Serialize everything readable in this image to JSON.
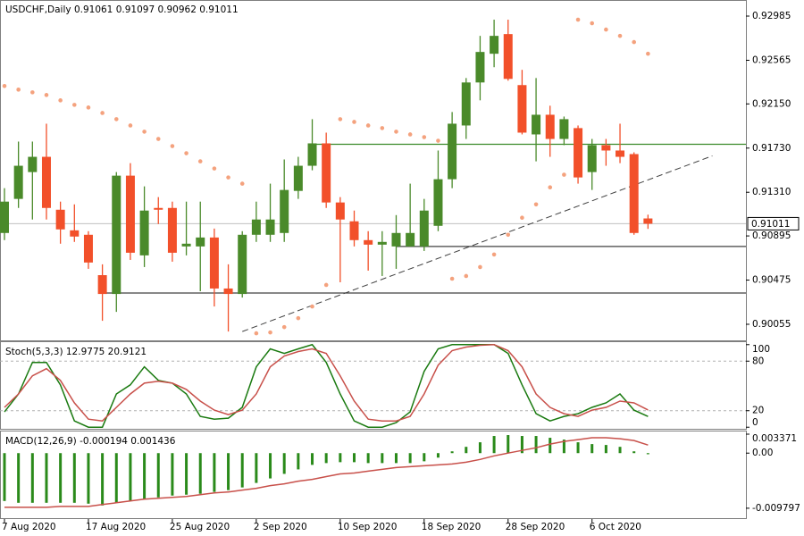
{
  "chart_data": [
    {
      "type": "candlestick",
      "title": "USDCHF,Daily  0.91061 0.91097 0.90962 0.91011",
      "categories": [
        "7 Aug 2020",
        null,
        null,
        null,
        null,
        null,
        "17 Aug 2020",
        null,
        null,
        null,
        null,
        null,
        "25 Aug 2020",
        null,
        null,
        null,
        null,
        null,
        "2 Sep 2020",
        null,
        null,
        null,
        null,
        null,
        "10 Sep 2020",
        null,
        null,
        null,
        null,
        null,
        "18 Sep 2020",
        null,
        null,
        null,
        null,
        null,
        "28 Sep 2020",
        null,
        null,
        null,
        null,
        null,
        "6 Oct 2020",
        null,
        null,
        null,
        null
      ],
      "open": [
        0.90923,
        0.91247,
        0.91502,
        0.91647,
        0.91144,
        0.90948,
        0.90906,
        0.90522,
        0.90343,
        0.91468,
        0.9071,
        0.91161,
        0.91161,
        0.90795,
        0.90795,
        0.9088,
        0.90395,
        0.90343,
        0.90906,
        0.90906,
        0.90923,
        0.91323,
        0.91562,
        0.91775,
        0.91213,
        0.91034,
        0.90855,
        0.90812,
        0.90795,
        0.90795,
        0.90795,
        0.90991,
        0.91434,
        0.91945,
        0.92354,
        0.92627,
        0.92814,
        0.92329,
        0.9186,
        0.92047,
        0.91817,
        0.9192,
        0.91502,
        0.91758,
        0.91707,
        0.91673,
        0.91061
      ],
      "high": [
        0.91349,
        0.91792,
        0.91792,
        0.91962,
        0.91221,
        0.91195,
        0.9094,
        0.90625,
        0.91502,
        0.91587,
        0.91366,
        0.91264,
        0.91221,
        0.91221,
        0.91221,
        0.90965,
        0.90625,
        0.9094,
        0.91221,
        0.91392,
        0.91622,
        0.91647,
        0.92005,
        0.91877,
        0.91264,
        0.91136,
        0.9094,
        0.9094,
        0.91093,
        0.91392,
        0.91247,
        0.91707,
        0.92073,
        0.92396,
        0.92797,
        0.92951,
        0.92951,
        0.92474,
        0.92396,
        0.92133,
        0.9203,
        0.91945,
        0.91817,
        0.91817,
        0.91962,
        0.9169,
        0.91097
      ],
      "low": [
        0.90855,
        0.91161,
        0.91051,
        0.91051,
        0.90821,
        0.90838,
        0.90582,
        0.90088,
        0.90173,
        0.90667,
        0.90599,
        0.91008,
        0.9065,
        0.9071,
        0.90369,
        0.90224,
        0.89986,
        0.90309,
        0.90838,
        0.90838,
        0.90838,
        0.91247,
        0.91519,
        0.91161,
        0.90454,
        0.90795,
        0.90565,
        0.90514,
        0.90582,
        0.90795,
        0.90752,
        0.9094,
        0.91349,
        0.91817,
        0.92184,
        0.92499,
        0.92371,
        0.9186,
        0.91604,
        0.91647,
        0.91758,
        0.91392,
        0.91332,
        0.91562,
        0.91587,
        0.90906,
        0.90962
      ],
      "close": [
        0.91221,
        0.91562,
        0.91647,
        0.91161,
        0.90957,
        0.90889,
        0.90642,
        0.90343,
        0.91468,
        0.90735,
        0.91136,
        0.91144,
        0.90735,
        0.90821,
        0.9088,
        0.90395,
        0.90343,
        0.90906,
        0.91051,
        0.91051,
        0.91332,
        0.91562,
        0.91775,
        0.91213,
        0.91051,
        0.90855,
        0.90812,
        0.90838,
        0.90923,
        0.90923,
        0.91136,
        0.91434,
        0.91962,
        0.92354,
        0.92644,
        0.92797,
        0.92388,
        0.91877,
        0.92047,
        0.91817,
        0.92005,
        0.91451,
        0.91758,
        0.91707,
        0.91647,
        0.90923,
        0.91011
      ],
      "up_color": "#4a8a2a",
      "down_color": "#f2502a",
      "sar": {
        "color": "#f4a27e",
        "values": [
          0.9232,
          0.92286,
          0.9226,
          0.92235,
          0.92184,
          0.92141,
          0.92116,
          0.92064,
          0.92005,
          0.91945,
          0.91886,
          0.91817,
          0.91749,
          0.91681,
          0.91604,
          0.91536,
          0.91451,
          0.91392,
          0.89969,
          0.89977,
          0.90028,
          0.90113,
          0.90224,
          0.90429,
          0.92005,
          0.91979,
          0.91945,
          0.9192,
          0.91886,
          0.9186,
          0.91834,
          0.918,
          0.90488,
          0.90514,
          0.90599,
          0.90718,
          0.90906,
          0.91068,
          0.91195,
          0.91357,
          0.91477,
          0.92951,
          0.92917,
          0.92857,
          0.92797,
          0.92738,
          0.92627
        ]
      },
      "hlines": [
        {
          "value": 0.91766,
          "color": "#3a8a2a",
          "start": 22
        },
        {
          "value": 0.90795,
          "color": "#404040",
          "start": 28
        },
        {
          "value": 0.90352,
          "color": "#404040",
          "start": 7
        }
      ],
      "trendline": {
        "x": [
          17,
          50.6
        ],
        "y": [
          0.89986,
          0.91656
        ],
        "color": "#404040"
      },
      "last_price": 0.91011,
      "ylim": [
        0.89902,
        0.93138
      ],
      "yticks": [
        0.92985,
        0.92565,
        {
          "value": 0.9215,
          "label": "0.92150"
        },
        {
          "value": 0.9173,
          "label": "0.91730"
        },
        {
          "value": 0.9131,
          "label": "0.91310"
        },
        0.90895,
        0.90475,
        0.90055
      ]
    },
    {
      "type": "line",
      "title": "Stoch(5,3,3) 12.9775 20.9121",
      "ylim": [
        -3,
        103
      ],
      "yticks": [
        100,
        80,
        20,
        0
      ],
      "levels": [
        80,
        20
      ],
      "series": [
        {
          "color": "#1a7a10",
          "values": [
            18.5,
            40.3,
            78.5,
            78.5,
            51.3,
            7.6,
            0,
            0,
            40.3,
            51.3,
            73.1,
            56.7,
            53.4,
            40.3,
            13.1,
            9.8,
            10.9,
            24.0,
            73.1,
            94.9,
            89.4,
            94.9,
            100,
            78.5,
            40.3,
            7.6,
            0,
            0,
            5.5,
            18.5,
            67.6,
            94.9,
            100,
            100,
            100,
            100,
            89.4,
            51.3,
            16.4,
            7.6,
            13.1,
            16.4,
            24.0,
            29.4,
            40.3,
            20.7,
            12.9775
          ]
        },
        {
          "color": "#c8504a",
          "values": [
            24.0,
            40.3,
            62.2,
            70.9,
            56.7,
            29.4,
            9.8,
            7.6,
            24.0,
            40.3,
            53.4,
            55.6,
            53.4,
            45.8,
            31.6,
            20.7,
            15.3,
            20.7,
            40.3,
            73.1,
            86.2,
            91.6,
            94.9,
            89.4,
            62.2,
            31.6,
            9.8,
            7.6,
            7.6,
            13.1,
            40.3,
            75.2,
            92.7,
            97.1,
            99.2,
            100,
            92.7,
            73.1,
            40.3,
            24.0,
            16.4,
            13.1,
            20.7,
            24.0,
            31.6,
            29.4,
            20.9121
          ]
        }
      ]
    },
    {
      "type": "macd",
      "title": "MACD(12,26,9) -0.000194 0.001436",
      "ylim": [
        -0.01172,
        0.00385
      ],
      "yticks": [
        0.003371,
        {
          "value": 0,
          "label": "0.00"
        },
        -0.009797
      ],
      "series": [
        {
          "type": "bar",
          "color": "#2a8a1a",
          "values": [
            -0.00851,
            -0.00883,
            -0.00883,
            -0.00883,
            -0.00883,
            -0.00883,
            -0.00899,
            -0.00931,
            -0.00883,
            -0.00851,
            -0.00819,
            -0.00787,
            -0.00755,
            -0.00739,
            -0.00723,
            -0.0069,
            -0.00658,
            -0.0061,
            -0.0053,
            -0.0045,
            -0.00369,
            -0.00289,
            -0.00209,
            -0.00177,
            -0.00161,
            -0.00161,
            -0.00177,
            -0.00177,
            -0.00177,
            -0.00177,
            -0.00145,
            -0.0008,
            0.00032,
            0.00112,
            0.00193,
            0.00305,
            0.00321,
            0.00305,
            0.00305,
            0.00273,
            0.00241,
            0.00193,
            0.00161,
            0.00145,
            0.00112,
            0.00032,
            -0.000194
          ]
        },
        {
          "type": "line",
          "color": "#c8504a",
          "values": [
            -0.00964,
            -0.00964,
            -0.00964,
            -0.00964,
            -0.00948,
            -0.00948,
            -0.00948,
            -0.00915,
            -0.00883,
            -0.00851,
            -0.00819,
            -0.00803,
            -0.00787,
            -0.00771,
            -0.00739,
            -0.00707,
            -0.00691,
            -0.00658,
            -0.00626,
            -0.00578,
            -0.00546,
            -0.00498,
            -0.00466,
            -0.00418,
            -0.00369,
            -0.00353,
            -0.00321,
            -0.00289,
            -0.00257,
            -0.00241,
            -0.00225,
            -0.00209,
            -0.00193,
            -0.00161,
            -0.00112,
            -0.00048,
            0,
            0.00048,
            0.00096,
            0.00161,
            0.00209,
            0.00241,
            0.00273,
            0.00273,
            0.00257,
            0.00225,
            0.001436
          ]
        }
      ]
    }
  ]
}
